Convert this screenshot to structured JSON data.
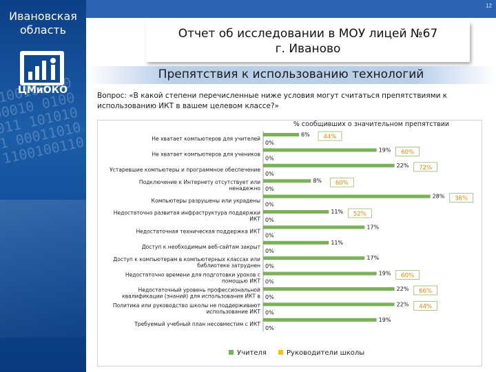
{
  "page_number": "12",
  "sidebar": {
    "region_line1": "Ивановская",
    "region_line2": "область",
    "logo_text": "ЦМиОКО",
    "binary_background": "0110100100 1011000010 0100110011 1010100101 0001101011 1100100110"
  },
  "header": {
    "report_line1": "Отчет об исследовании в МОУ лицей №67",
    "report_line2": "г. Иваново",
    "subtitle": "Препятствия к использованию технологий"
  },
  "question": "Вопрос: «В какой степени перечисленные ниже условия могут считаться препятствиями к использованию ИКТ в вашем целевом классе?»",
  "chart_data": {
    "type": "bar",
    "orientation": "horizontal",
    "title": "% сообщивших о значительном препятствии",
    "categories": [
      "Не хватает компьютеров для учителей",
      "Не хватает компьютеров для учеников",
      "Устаревшие компьютеры и программное обеспечение",
      "Подключение к Интернету отсутствует или ненадежно",
      "Компьютеры разрушены или украдены",
      "Недостаточно развитая инфраструктура поддержки ИКТ",
      "Недостаточная техническая поддержка ИКТ",
      "Доступ к необходимым веб-сайтам закрыт",
      "Доступ к компьютерам в компьютерных классах или библиотеке затруднен",
      "Недостаточно времени для подготовки уроков с помощью ИКТ",
      "Недостаточный уровень профессиональной квалификации (знаний) для использования ИКТ в",
      "Политика или руководство школы не поддерживают использование ИКТ",
      "Требуемый учебный план несовместим с ИКТ"
    ],
    "series": [
      {
        "name": "Учителя",
        "color": "#77b255",
        "values": [
          6,
          19,
          22,
          8,
          28,
          11,
          17,
          11,
          17,
          19,
          22,
          22,
          19
        ],
        "labels": [
          "6%",
          "19%",
          "22%",
          "8%",
          "28%",
          "11%",
          "17%",
          "11%",
          "17%",
          "19%",
          "22%",
          "22%",
          "19%"
        ]
      },
      {
        "name": "Руководители школы",
        "color": "#f0c419",
        "values": [
          0,
          0,
          0,
          0,
          0,
          0,
          0,
          0,
          0,
          0,
          0,
          0,
          0
        ],
        "labels": [
          "0%",
          "0%",
          "0%",
          "0%",
          "0%",
          "0%",
          "0%",
          "0%",
          "0%",
          "0%",
          "0%",
          "0%",
          "0%"
        ]
      }
    ],
    "xlim": [
      0,
      30
    ],
    "annotations": [
      "44%",
      "60%",
      "72%",
      "60%",
      "36%",
      "52%",
      "60%",
      "66%",
      "44%"
    ],
    "annotation_rows": [
      0,
      1,
      2,
      3,
      4,
      5,
      9,
      10,
      11
    ],
    "legend_position": "bottom",
    "grid": false
  }
}
